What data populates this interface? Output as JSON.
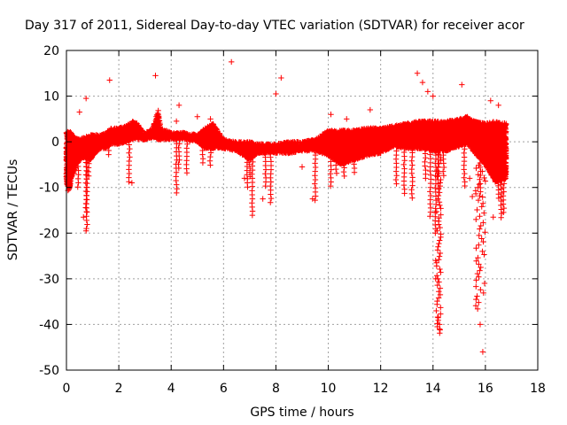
{
  "chart_data": {
    "type": "scatter",
    "title": "Day 317 of 2011, Sidereal Day-to-day VTEC variation (SDTVAR) for receiver acor",
    "xlabel": "GPS time / hours",
    "ylabel": "SDTVAR / TECUs",
    "xlim": [
      0,
      18
    ],
    "ylim": [
      -50,
      20
    ],
    "x_ticks": [
      0,
      2,
      4,
      6,
      8,
      10,
      12,
      14,
      16,
      18
    ],
    "y_ticks": [
      -50,
      -40,
      -30,
      -20,
      -10,
      0,
      10,
      20
    ],
    "grid": true,
    "marker": "+",
    "colors": {
      "series": "#ff0000",
      "grid": "#a0a0a0",
      "axis": "#000000"
    },
    "series": [
      {
        "name": "SDTVAR",
        "band": [
          [
            0.0,
            -9.0,
            2.5
          ],
          [
            0.1,
            -10.5,
            2.5
          ],
          [
            0.2,
            -8.0,
            2.0
          ],
          [
            0.3,
            -6.0,
            1.0
          ],
          [
            0.5,
            -4.0,
            0.5
          ],
          [
            0.7,
            -3.5,
            1.0
          ],
          [
            0.9,
            -4.0,
            1.5
          ],
          [
            1.1,
            -2.5,
            1.5
          ],
          [
            1.3,
            -1.5,
            1.5
          ],
          [
            1.5,
            -1.5,
            2.0
          ],
          [
            1.7,
            -0.5,
            3.0
          ],
          [
            2.0,
            -0.5,
            3.0
          ],
          [
            2.3,
            0.0,
            3.5
          ],
          [
            2.5,
            0.5,
            4.5
          ],
          [
            2.7,
            0.5,
            4.0
          ],
          [
            3.0,
            0.5,
            2.0
          ],
          [
            3.3,
            1.0,
            3.0
          ],
          [
            3.5,
            0.5,
            7.0
          ],
          [
            3.6,
            0.5,
            3.0
          ],
          [
            4.0,
            0.5,
            2.0
          ],
          [
            4.5,
            0.5,
            2.0
          ],
          [
            5.0,
            0.0,
            1.5
          ],
          [
            5.3,
            -1.5,
            3.0
          ],
          [
            5.6,
            -1.5,
            4.0
          ],
          [
            6.0,
            -1.5,
            0.5
          ],
          [
            6.5,
            -2.0,
            0.0
          ],
          [
            7.0,
            -4.0,
            0.0
          ],
          [
            7.3,
            -2.5,
            -0.5
          ],
          [
            8.0,
            -2.5,
            -0.5
          ],
          [
            8.5,
            -2.5,
            0.0
          ],
          [
            9.0,
            -2.0,
            0.0
          ],
          [
            9.5,
            -2.0,
            0.5
          ],
          [
            10.0,
            -3.0,
            2.5
          ],
          [
            10.5,
            -5.0,
            2.5
          ],
          [
            11.0,
            -4.0,
            2.5
          ],
          [
            11.5,
            -3.0,
            3.0
          ],
          [
            12.0,
            -2.5,
            3.0
          ],
          [
            12.5,
            -1.0,
            3.5
          ],
          [
            13.0,
            -1.5,
            4.0
          ],
          [
            13.5,
            -1.5,
            4.5
          ],
          [
            14.0,
            -2.0,
            4.5
          ],
          [
            14.5,
            -2.0,
            4.5
          ],
          [
            15.0,
            -1.0,
            5.0
          ],
          [
            15.3,
            -0.5,
            5.5
          ],
          [
            15.6,
            -2.5,
            4.5
          ],
          [
            16.0,
            -5.0,
            4.0
          ],
          [
            16.4,
            -9.0,
            4.5
          ],
          [
            16.8,
            -8.0,
            4.0
          ]
        ],
        "spikes": [
          [
            0.05,
            -11.0
          ],
          [
            0.15,
            -10.0
          ],
          [
            0.3,
            -7.0
          ],
          [
            0.45,
            -10.5
          ],
          [
            0.75,
            -16.0
          ],
          [
            0.78,
            -19.5
          ],
          [
            0.8,
            9.0
          ],
          [
            0.85,
            -8.0
          ],
          [
            1.1,
            6.0
          ],
          [
            1.6,
            -3.5
          ],
          [
            2.4,
            -9.0
          ],
          [
            3.4,
            6.0
          ],
          [
            4.2,
            -12.0
          ],
          [
            4.3,
            -6.0
          ],
          [
            4.6,
            -7.5
          ],
          [
            5.2,
            -5.0
          ],
          [
            5.5,
            -6.0
          ],
          [
            6.9,
            -10.5
          ],
          [
            7.0,
            -8.0
          ],
          [
            7.1,
            -16.5
          ],
          [
            7.8,
            -14.0
          ],
          [
            7.6,
            -10.0
          ],
          [
            9.5,
            -13.0
          ],
          [
            10.1,
            -10.0
          ],
          [
            10.3,
            -7.0
          ],
          [
            10.6,
            -8.0
          ],
          [
            11.0,
            -7.0
          ],
          [
            12.6,
            -10.0
          ],
          [
            12.9,
            -12.0
          ],
          [
            13.2,
            -12.5
          ],
          [
            13.7,
            -8.0
          ],
          [
            13.9,
            -17.0
          ],
          [
            14.1,
            -20.0
          ],
          [
            14.2,
            -11.0
          ],
          [
            14.4,
            -8.0
          ],
          [
            15.2,
            -10.0
          ],
          [
            15.8,
            -12.0
          ],
          [
            16.5,
            -13.0
          ],
          [
            16.6,
            -17.0
          ],
          [
            16.7,
            -16.0
          ]
        ],
        "outliers": [
          [
            0.75,
            9.5
          ],
          [
            0.5,
            6.5
          ],
          [
            0.65,
            -16.5
          ],
          [
            0.75,
            -19.5
          ],
          [
            1.65,
            13.5
          ],
          [
            2.5,
            -9.0
          ],
          [
            3.4,
            14.5
          ],
          [
            4.3,
            8.0
          ],
          [
            4.2,
            4.5
          ],
          [
            5.0,
            5.5
          ],
          [
            5.5,
            5.0
          ],
          [
            6.3,
            17.5
          ],
          [
            6.8,
            -8.0
          ],
          [
            7.5,
            -12.5
          ],
          [
            8.0,
            10.5
          ],
          [
            8.2,
            14.0
          ],
          [
            9.0,
            -5.5
          ],
          [
            9.4,
            -12.5
          ],
          [
            10.1,
            6.0
          ],
          [
            10.7,
            5.0
          ],
          [
            11.6,
            7.0
          ],
          [
            13.4,
            15.0
          ],
          [
            13.6,
            13.0
          ],
          [
            13.8,
            11.0
          ],
          [
            14.0,
            10.0
          ],
          [
            15.1,
            12.5
          ],
          [
            16.2,
            9.0
          ],
          [
            16.5,
            8.0
          ],
          [
            14.1,
            -26.0
          ],
          [
            14.1,
            -30.0
          ],
          [
            14.2,
            -38.5
          ],
          [
            14.25,
            -40.0
          ],
          [
            14.25,
            -41.0
          ],
          [
            15.8,
            -40.0
          ],
          [
            15.9,
            -46.0
          ],
          [
            15.4,
            -8.0
          ],
          [
            15.5,
            -12.0
          ],
          [
            16.3,
            -16.5
          ]
        ],
        "dip_14h": {
          "x_range": [
            14.1,
            14.3
          ],
          "y_range": [
            -42.0,
            -2.0
          ]
        },
        "dip_16h": {
          "x_range": [
            15.6,
            16.0
          ],
          "y_range": [
            -37.0,
            -3.0
          ]
        }
      }
    ]
  }
}
